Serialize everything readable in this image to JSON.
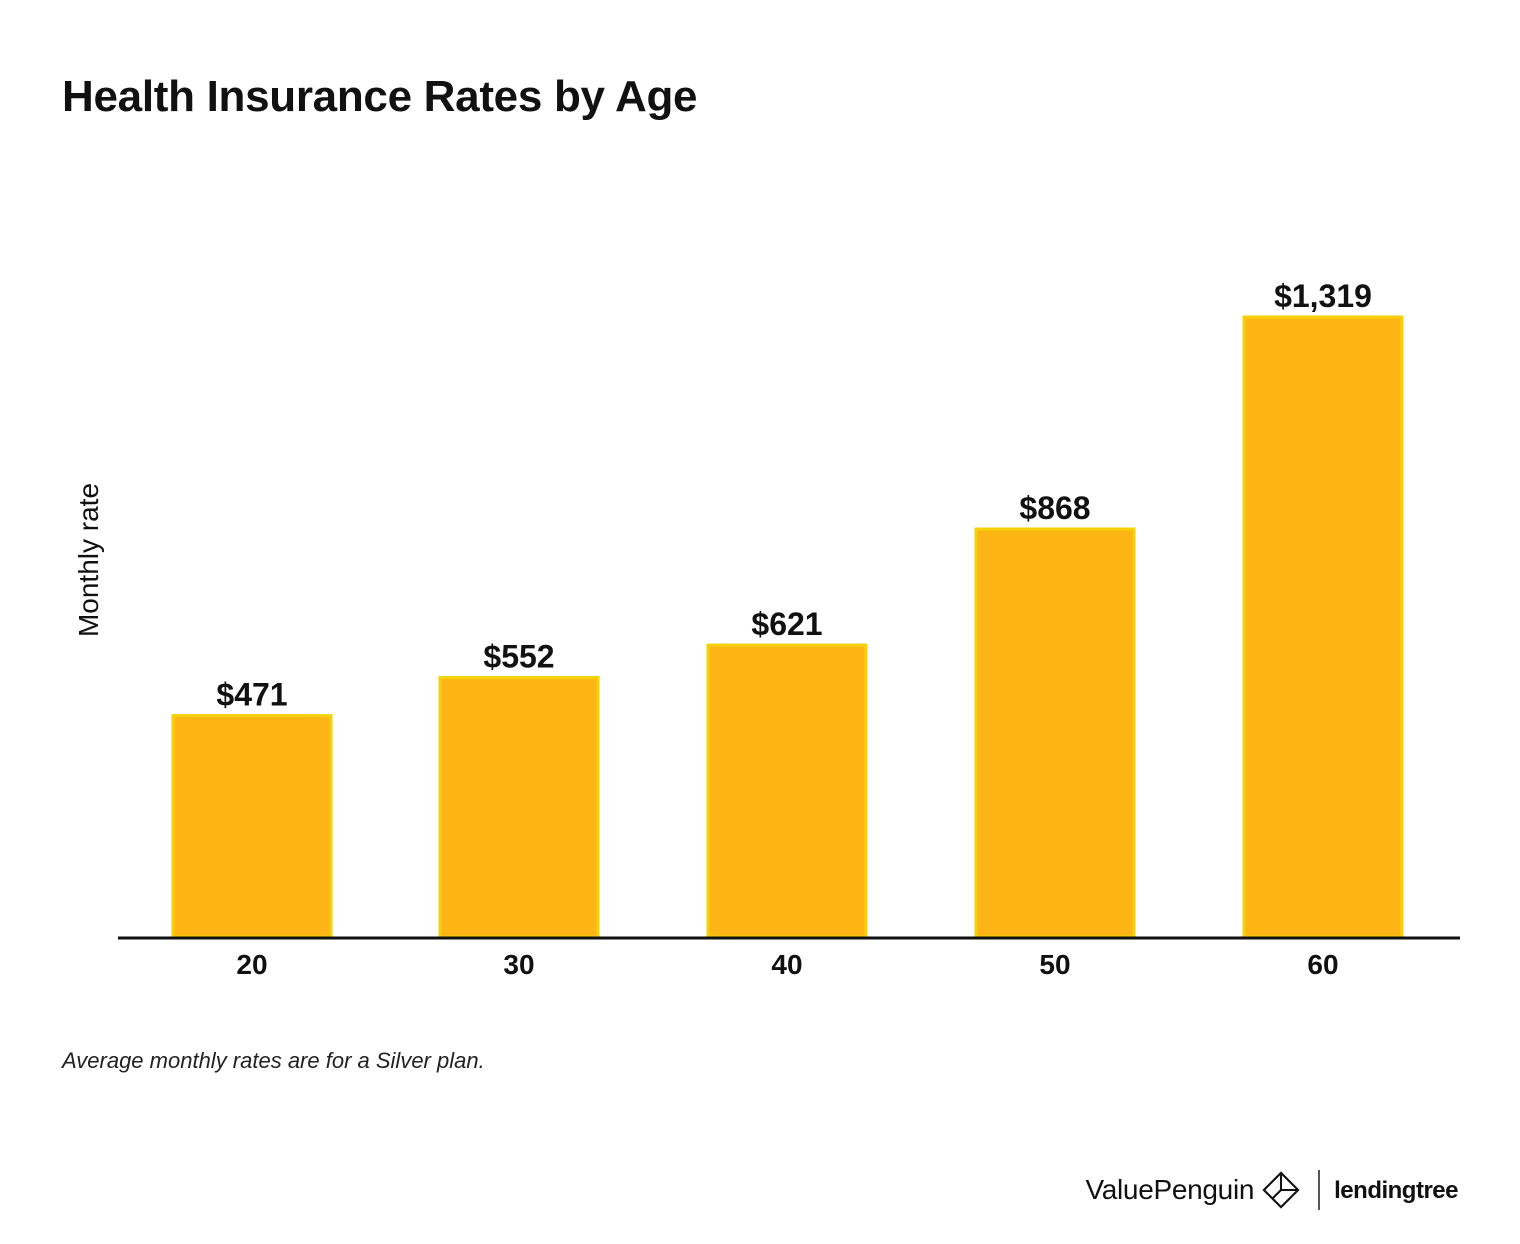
{
  "title": "Health Insurance Rates by Age",
  "footnote": "Average monthly rates are for a Silver plan.",
  "brand": {
    "valuepenguin": "ValuePenguin",
    "lendingtree_by": "",
    "lendingtree": "lendingtree",
    "logo_icon": "valuepenguin-diamond-icon"
  },
  "colors": {
    "bar": "#FDB515",
    "bar_edge": "#F5D10A",
    "axis": "#111111"
  },
  "chart_data": {
    "type": "bar",
    "title": "Health Insurance Rates by Age",
    "xlabel": "",
    "ylabel": "Monthly rate",
    "categories": [
      "20",
      "30",
      "40",
      "50",
      "60"
    ],
    "values": [
      471,
      552,
      621,
      868,
      1319
    ],
    "value_labels": [
      "$471",
      "$552",
      "$621",
      "$868",
      "$1,319"
    ],
    "ylim": [
      0,
      1319
    ],
    "grid": false,
    "legend": "none"
  }
}
